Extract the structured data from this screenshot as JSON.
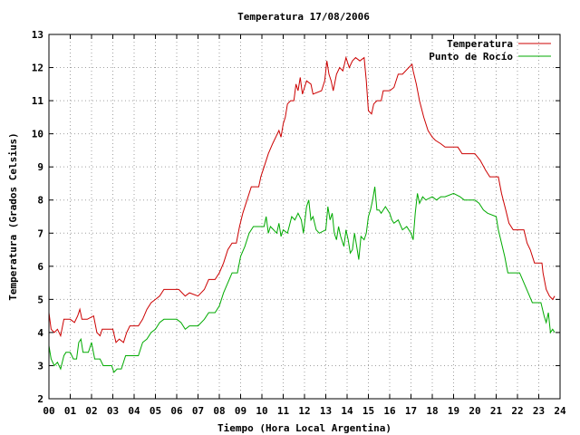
{
  "chart_data": {
    "type": "line",
    "title": "Temperatura 17/08/2006",
    "xlabel": "Tiempo (Hora Local Argentina)",
    "ylabel": "Temperatura (Grados Celsius)",
    "xlim": [
      0,
      24
    ],
    "ylim": [
      2,
      13
    ],
    "x_ticks": [
      0,
      1,
      2,
      3,
      4,
      5,
      6,
      7,
      8,
      9,
      10,
      11,
      12,
      13,
      14,
      15,
      16,
      17,
      18,
      19,
      20,
      21,
      22,
      23,
      24
    ],
    "x_tick_labels": [
      "00",
      "01",
      "02",
      "03",
      "04",
      "05",
      "06",
      "07",
      "08",
      "09",
      "10",
      "11",
      "12",
      "13",
      "14",
      "15",
      "16",
      "17",
      "18",
      "19",
      "20",
      "21",
      "22",
      "23",
      "24"
    ],
    "y_ticks": [
      2,
      3,
      4,
      5,
      6,
      7,
      8,
      9,
      10,
      11,
      12,
      13
    ],
    "y_tick_labels": [
      "2",
      "3",
      "4",
      "5",
      "6",
      "7",
      "8",
      "9",
      "10",
      "11",
      "12",
      "13"
    ],
    "grid": true,
    "legend_position": "top-right",
    "series": [
      {
        "name": "Temperatura",
        "color": "#cc0000",
        "points": [
          [
            0.0,
            4.6
          ],
          [
            0.1,
            4.1
          ],
          [
            0.25,
            4.0
          ],
          [
            0.4,
            4.1
          ],
          [
            0.55,
            3.9
          ],
          [
            0.7,
            4.4
          ],
          [
            1.0,
            4.4
          ],
          [
            1.2,
            4.3
          ],
          [
            1.35,
            4.5
          ],
          [
            1.45,
            4.7
          ],
          [
            1.55,
            4.4
          ],
          [
            1.8,
            4.4
          ],
          [
            2.1,
            4.5
          ],
          [
            2.25,
            4.0
          ],
          [
            2.4,
            3.9
          ],
          [
            2.5,
            4.1
          ],
          [
            3.0,
            4.1
          ],
          [
            3.15,
            3.7
          ],
          [
            3.3,
            3.8
          ],
          [
            3.5,
            3.7
          ],
          [
            3.65,
            4.0
          ],
          [
            3.8,
            4.2
          ],
          [
            4.2,
            4.2
          ],
          [
            4.4,
            4.4
          ],
          [
            4.6,
            4.7
          ],
          [
            4.8,
            4.9
          ],
          [
            5.0,
            5.0
          ],
          [
            5.2,
            5.1
          ],
          [
            5.4,
            5.3
          ],
          [
            5.7,
            5.3
          ],
          [
            6.1,
            5.3
          ],
          [
            6.25,
            5.2
          ],
          [
            6.4,
            5.1
          ],
          [
            6.6,
            5.2
          ],
          [
            7.0,
            5.1
          ],
          [
            7.3,
            5.3
          ],
          [
            7.5,
            5.6
          ],
          [
            7.8,
            5.6
          ],
          [
            8.0,
            5.8
          ],
          [
            8.2,
            6.1
          ],
          [
            8.4,
            6.5
          ],
          [
            8.6,
            6.7
          ],
          [
            8.8,
            6.7
          ],
          [
            8.95,
            7.2
          ],
          [
            9.1,
            7.6
          ],
          [
            9.3,
            8.0
          ],
          [
            9.5,
            8.4
          ],
          [
            9.85,
            8.4
          ],
          [
            9.95,
            8.7
          ],
          [
            10.1,
            9.0
          ],
          [
            10.3,
            9.4
          ],
          [
            10.5,
            9.7
          ],
          [
            10.65,
            9.9
          ],
          [
            10.8,
            10.1
          ],
          [
            10.9,
            9.9
          ],
          [
            11.0,
            10.3
          ],
          [
            11.1,
            10.5
          ],
          [
            11.2,
            10.9
          ],
          [
            11.35,
            11.0
          ],
          [
            11.5,
            11.0
          ],
          [
            11.6,
            11.5
          ],
          [
            11.7,
            11.3
          ],
          [
            11.8,
            11.7
          ],
          [
            11.9,
            11.2
          ],
          [
            12.1,
            11.6
          ],
          [
            12.3,
            11.5
          ],
          [
            12.4,
            11.2
          ],
          [
            12.8,
            11.3
          ],
          [
            12.95,
            11.6
          ],
          [
            13.05,
            12.2
          ],
          [
            13.15,
            11.8
          ],
          [
            13.25,
            11.6
          ],
          [
            13.35,
            11.3
          ],
          [
            13.5,
            11.8
          ],
          [
            13.65,
            12.0
          ],
          [
            13.8,
            11.9
          ],
          [
            13.95,
            12.3
          ],
          [
            14.1,
            12.0
          ],
          [
            14.25,
            12.2
          ],
          [
            14.4,
            12.3
          ],
          [
            14.6,
            12.2
          ],
          [
            14.8,
            12.3
          ],
          [
            14.9,
            11.6
          ],
          [
            15.0,
            10.7
          ],
          [
            15.15,
            10.6
          ],
          [
            15.25,
            10.9
          ],
          [
            15.4,
            11.0
          ],
          [
            15.6,
            11.0
          ],
          [
            15.7,
            11.3
          ],
          [
            16.0,
            11.3
          ],
          [
            16.2,
            11.4
          ],
          [
            16.4,
            11.8
          ],
          [
            16.6,
            11.8
          ],
          [
            16.9,
            12.0
          ],
          [
            17.05,
            12.1
          ],
          [
            17.1,
            11.9
          ],
          [
            17.25,
            11.5
          ],
          [
            17.4,
            11.0
          ],
          [
            17.6,
            10.5
          ],
          [
            17.8,
            10.1
          ],
          [
            18.0,
            9.9
          ],
          [
            18.15,
            9.8
          ],
          [
            18.4,
            9.7
          ],
          [
            18.6,
            9.6
          ],
          [
            19.2,
            9.6
          ],
          [
            19.4,
            9.4
          ],
          [
            20.0,
            9.4
          ],
          [
            20.25,
            9.2
          ],
          [
            20.5,
            8.9
          ],
          [
            20.7,
            8.7
          ],
          [
            21.1,
            8.7
          ],
          [
            21.25,
            8.2
          ],
          [
            21.45,
            7.7
          ],
          [
            21.6,
            7.3
          ],
          [
            21.8,
            7.1
          ],
          [
            22.3,
            7.1
          ],
          [
            22.45,
            6.7
          ],
          [
            22.6,
            6.5
          ],
          [
            22.8,
            6.1
          ],
          [
            23.15,
            6.1
          ],
          [
            23.2,
            5.8
          ],
          [
            23.35,
            5.3
          ],
          [
            23.5,
            5.1
          ],
          [
            23.65,
            5.0
          ],
          [
            23.75,
            5.1
          ]
        ]
      },
      {
        "name": "Punto de Rocío",
        "color": "#00aa00",
        "points": [
          [
            0.0,
            3.6
          ],
          [
            0.1,
            3.2
          ],
          [
            0.25,
            3.0
          ],
          [
            0.4,
            3.1
          ],
          [
            0.55,
            2.9
          ],
          [
            0.7,
            3.3
          ],
          [
            0.8,
            3.4
          ],
          [
            1.0,
            3.4
          ],
          [
            1.15,
            3.2
          ],
          [
            1.3,
            3.2
          ],
          [
            1.4,
            3.7
          ],
          [
            1.5,
            3.8
          ],
          [
            1.6,
            3.4
          ],
          [
            1.85,
            3.4
          ],
          [
            2.0,
            3.7
          ],
          [
            2.15,
            3.2
          ],
          [
            2.4,
            3.2
          ],
          [
            2.55,
            3.0
          ],
          [
            2.7,
            3.0
          ],
          [
            2.95,
            3.0
          ],
          [
            3.05,
            2.8
          ],
          [
            3.2,
            2.9
          ],
          [
            3.4,
            2.9
          ],
          [
            3.6,
            3.3
          ],
          [
            3.8,
            3.3
          ],
          [
            4.2,
            3.3
          ],
          [
            4.4,
            3.7
          ],
          [
            4.6,
            3.8
          ],
          [
            4.8,
            4.0
          ],
          [
            5.0,
            4.1
          ],
          [
            5.2,
            4.3
          ],
          [
            5.4,
            4.4
          ],
          [
            6.0,
            4.4
          ],
          [
            6.2,
            4.3
          ],
          [
            6.4,
            4.1
          ],
          [
            6.6,
            4.2
          ],
          [
            7.0,
            4.2
          ],
          [
            7.3,
            4.4
          ],
          [
            7.5,
            4.6
          ],
          [
            7.8,
            4.6
          ],
          [
            8.0,
            4.8
          ],
          [
            8.2,
            5.2
          ],
          [
            8.4,
            5.5
          ],
          [
            8.6,
            5.8
          ],
          [
            8.85,
            5.8
          ],
          [
            9.0,
            6.3
          ],
          [
            9.2,
            6.6
          ],
          [
            9.4,
            7.0
          ],
          [
            9.6,
            7.2
          ],
          [
            10.1,
            7.2
          ],
          [
            10.2,
            7.5
          ],
          [
            10.3,
            7.0
          ],
          [
            10.4,
            7.2
          ],
          [
            10.55,
            7.1
          ],
          [
            10.7,
            7.0
          ],
          [
            10.8,
            7.3
          ],
          [
            10.9,
            6.9
          ],
          [
            11.0,
            7.1
          ],
          [
            11.2,
            7.0
          ],
          [
            11.4,
            7.5
          ],
          [
            11.55,
            7.4
          ],
          [
            11.7,
            7.6
          ],
          [
            11.85,
            7.4
          ],
          [
            11.95,
            7.0
          ],
          [
            12.1,
            7.8
          ],
          [
            12.2,
            8.0
          ],
          [
            12.3,
            7.4
          ],
          [
            12.4,
            7.5
          ],
          [
            12.55,
            7.1
          ],
          [
            12.7,
            7.0
          ],
          [
            13.0,
            7.1
          ],
          [
            13.1,
            7.8
          ],
          [
            13.2,
            7.4
          ],
          [
            13.3,
            7.6
          ],
          [
            13.4,
            7.0
          ],
          [
            13.5,
            6.8
          ],
          [
            13.6,
            7.2
          ],
          [
            13.7,
            6.9
          ],
          [
            13.85,
            6.6
          ],
          [
            13.95,
            7.1
          ],
          [
            14.05,
            6.8
          ],
          [
            14.15,
            6.4
          ],
          [
            14.25,
            6.5
          ],
          [
            14.35,
            7.0
          ],
          [
            14.45,
            6.6
          ],
          [
            14.55,
            6.2
          ],
          [
            14.65,
            6.9
          ],
          [
            14.8,
            6.8
          ],
          [
            14.9,
            7.0
          ],
          [
            15.0,
            7.5
          ],
          [
            15.1,
            7.7
          ],
          [
            15.2,
            8.0
          ],
          [
            15.3,
            8.4
          ],
          [
            15.4,
            7.7
          ],
          [
            15.5,
            7.7
          ],
          [
            15.6,
            7.6
          ],
          [
            15.8,
            7.8
          ],
          [
            16.0,
            7.6
          ],
          [
            16.1,
            7.4
          ],
          [
            16.2,
            7.3
          ],
          [
            16.4,
            7.4
          ],
          [
            16.6,
            7.1
          ],
          [
            16.8,
            7.2
          ],
          [
            17.0,
            7.0
          ],
          [
            17.1,
            6.8
          ],
          [
            17.2,
            7.6
          ],
          [
            17.3,
            8.2
          ],
          [
            17.4,
            7.9
          ],
          [
            17.55,
            8.1
          ],
          [
            17.7,
            8.0
          ],
          [
            18.0,
            8.1
          ],
          [
            18.2,
            8.0
          ],
          [
            18.4,
            8.1
          ],
          [
            18.6,
            8.1
          ],
          [
            19.0,
            8.2
          ],
          [
            19.3,
            8.1
          ],
          [
            19.5,
            8.0
          ],
          [
            20.0,
            8.0
          ],
          [
            20.2,
            7.9
          ],
          [
            20.4,
            7.7
          ],
          [
            20.6,
            7.6
          ],
          [
            21.0,
            7.5
          ],
          [
            21.1,
            7.1
          ],
          [
            21.25,
            6.7
          ],
          [
            21.4,
            6.3
          ],
          [
            21.55,
            5.8
          ],
          [
            22.1,
            5.8
          ],
          [
            22.3,
            5.5
          ],
          [
            22.5,
            5.2
          ],
          [
            22.7,
            4.9
          ],
          [
            23.1,
            4.9
          ],
          [
            23.25,
            4.5
          ],
          [
            23.35,
            4.3
          ],
          [
            23.45,
            4.6
          ],
          [
            23.55,
            4.0
          ],
          [
            23.65,
            4.1
          ],
          [
            23.75,
            4.0
          ]
        ]
      }
    ]
  }
}
